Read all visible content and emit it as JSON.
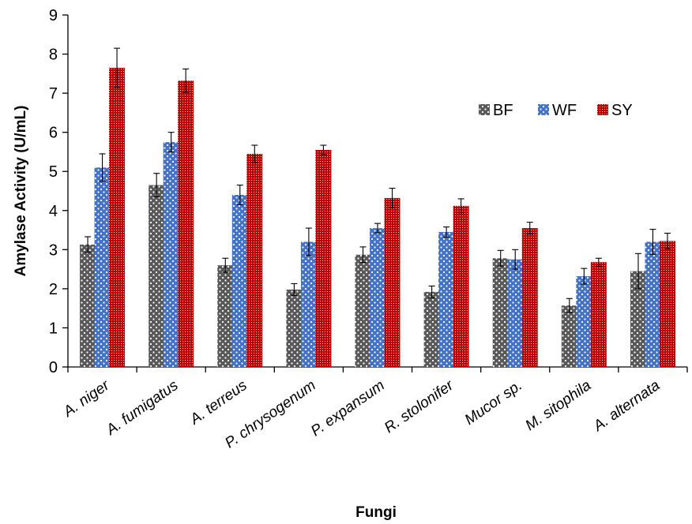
{
  "chart_data": {
    "type": "bar",
    "title": "",
    "xlabel": "Fungi",
    "ylabel": "Amylase Activity (U/mL)",
    "ylim": [
      0,
      9
    ],
    "yticks": [
      "0",
      "1",
      "2",
      "3",
      "4",
      "5",
      "6",
      "7",
      "8",
      "9"
    ],
    "grid": false,
    "legend_position": "right",
    "categories": [
      "A. niger",
      "A. fumigatus",
      "A. terreus",
      "P. chrysogenum",
      "P. expansum",
      "R. stolonifer",
      "Mucor sp.",
      "M. sitophila",
      "A. alternata"
    ],
    "series": [
      {
        "name": "BF",
        "color": "#595959",
        "values": [
          3.13,
          4.65,
          2.6,
          1.98,
          2.87,
          1.92,
          2.78,
          1.57,
          2.45
        ],
        "errors": [
          0.2,
          0.3,
          0.18,
          0.15,
          0.2,
          0.15,
          0.2,
          0.18,
          0.45
        ]
      },
      {
        "name": "WF",
        "color": "#4472C4",
        "values": [
          5.1,
          5.75,
          4.4,
          3.2,
          3.55,
          3.45,
          2.75,
          2.32,
          3.2
        ],
        "errors": [
          0.35,
          0.25,
          0.25,
          0.35,
          0.12,
          0.13,
          0.25,
          0.2,
          0.32
        ]
      },
      {
        "name": "SY",
        "color": "#C00000",
        "values": [
          7.65,
          7.32,
          5.45,
          5.55,
          4.32,
          4.12,
          3.55,
          2.68,
          3.22
        ],
        "errors": [
          0.5,
          0.3,
          0.22,
          0.12,
          0.25,
          0.18,
          0.15,
          0.1,
          0.2
        ]
      }
    ]
  }
}
